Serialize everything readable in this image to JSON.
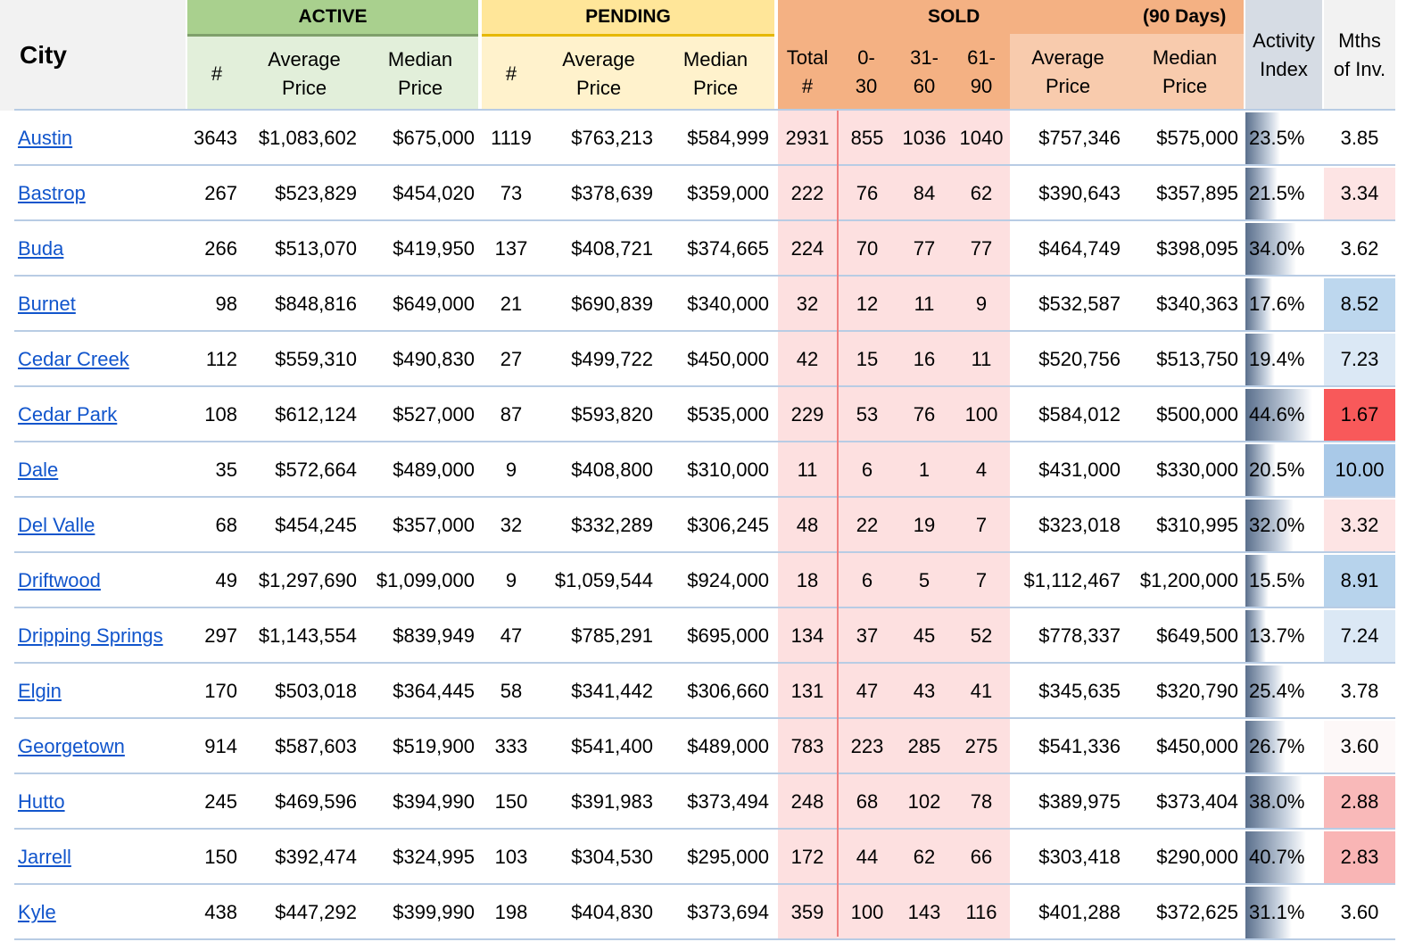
{
  "header": {
    "city": "City",
    "active": "ACTIVE",
    "pending": "PENDING",
    "sold": "SOLD",
    "sold_period": "(90 Days)",
    "num": "#",
    "average_price": [
      "Average",
      "Price"
    ],
    "median_price": [
      "Median",
      "Price"
    ],
    "total": [
      "Total",
      "#"
    ],
    "d0_30": [
      "0-",
      "30"
    ],
    "d31_60": [
      "31-",
      "60"
    ],
    "d61_90": [
      "61-",
      "90"
    ],
    "activity_index": [
      "Activity",
      "Index"
    ],
    "mths_inv": [
      "Mths",
      "of Inv."
    ]
  },
  "colors": {
    "active_top": "#a9d08e",
    "active_sub": "#e2efda",
    "pending_top": "#ffe699",
    "pending_sub": "#fff2cc",
    "sold_top": "#f4b183",
    "sold_sub": "#f8cbad",
    "sold_band": "#fde0e0",
    "grey_header": "#d6dce4",
    "link": "#1155cc"
  },
  "rows": [
    {
      "city": "Austin",
      "a_n": "3643",
      "a_avg": "$1,083,602",
      "a_med": "$675,000",
      "p_n": "1119",
      "p_avg": "$763,213",
      "p_med": "$584,999",
      "s_tot": "2931",
      "s_0": "855",
      "s_31": "1036",
      "s_61": "1040",
      "s_avg": "$757,346",
      "s_med": "$575,000",
      "act": "23.5%",
      "act_value": 23.5,
      "mths": "3.85",
      "mths_color": "#ffffff"
    },
    {
      "city": "Bastrop",
      "a_n": "267",
      "a_avg": "$523,829",
      "a_med": "$454,020",
      "p_n": "73",
      "p_avg": "$378,639",
      "p_med": "$359,000",
      "s_tot": "222",
      "s_0": "76",
      "s_31": "84",
      "s_61": "62",
      "s_avg": "$390,643",
      "s_med": "$357,895",
      "act": "21.5%",
      "act_value": 21.5,
      "mths": "3.34",
      "mths_color": "#fde4e4"
    },
    {
      "city": "Buda",
      "a_n": "266",
      "a_avg": "$513,070",
      "a_med": "$419,950",
      "p_n": "137",
      "p_avg": "$408,721",
      "p_med": "$374,665",
      "s_tot": "224",
      "s_0": "70",
      "s_31": "77",
      "s_61": "77",
      "s_avg": "$464,749",
      "s_med": "$398,095",
      "act": "34.0%",
      "act_value": 34.0,
      "mths": "3.62",
      "mths_color": "#ffffff"
    },
    {
      "city": "Burnet",
      "a_n": "98",
      "a_avg": "$848,816",
      "a_med": "$649,000",
      "p_n": "21",
      "p_avg": "$690,839",
      "p_med": "$340,000",
      "s_tot": "32",
      "s_0": "12",
      "s_31": "11",
      "s_61": "9",
      "s_avg": "$532,587",
      "s_med": "$340,363",
      "act": "17.6%",
      "act_value": 17.6,
      "mths": "8.52",
      "mths_color": "#bdd7ee"
    },
    {
      "city": "Cedar Creek",
      "a_n": "112",
      "a_avg": "$559,310",
      "a_med": "$490,830",
      "p_n": "27",
      "p_avg": "$499,722",
      "p_med": "$450,000",
      "s_tot": "42",
      "s_0": "15",
      "s_31": "16",
      "s_61": "11",
      "s_avg": "$520,756",
      "s_med": "$513,750",
      "act": "19.4%",
      "act_value": 19.4,
      "mths": "7.23",
      "mths_color": "#dbe8f5"
    },
    {
      "city": "Cedar Park",
      "a_n": "108",
      "a_avg": "$612,124",
      "a_med": "$527,000",
      "p_n": "87",
      "p_avg": "$593,820",
      "p_med": "$535,000",
      "s_tot": "229",
      "s_0": "53",
      "s_31": "76",
      "s_61": "100",
      "s_avg": "$584,012",
      "s_med": "$500,000",
      "act": "44.6%",
      "act_value": 44.6,
      "mths": "1.67",
      "mths_color": "#f8595a"
    },
    {
      "city": "Dale",
      "a_n": "35",
      "a_avg": "$572,664",
      "a_med": "$489,000",
      "p_n": "9",
      "p_avg": "$408,800",
      "p_med": "$310,000",
      "s_tot": "11",
      "s_0": "6",
      "s_31": "1",
      "s_61": "4",
      "s_avg": "$431,000",
      "s_med": "$330,000",
      "act": "20.5%",
      "act_value": 20.5,
      "mths": "10.00",
      "mths_color": "#a9c9e8"
    },
    {
      "city": "Del Valle",
      "a_n": "68",
      "a_avg": "$454,245",
      "a_med": "$357,000",
      "p_n": "32",
      "p_avg": "$332,289",
      "p_med": "$306,245",
      "s_tot": "48",
      "s_0": "22",
      "s_31": "19",
      "s_61": "7",
      "s_avg": "$323,018",
      "s_med": "$310,995",
      "act": "32.0%",
      "act_value": 32.0,
      "mths": "3.32",
      "mths_color": "#fde4e4"
    },
    {
      "city": "Driftwood",
      "a_n": "49",
      "a_avg": "$1,297,690",
      "a_med": "$1,099,000",
      "p_n": "9",
      "p_avg": "$1,059,544",
      "p_med": "$924,000",
      "s_tot": "18",
      "s_0": "6",
      "s_31": "5",
      "s_61": "7",
      "s_avg": "$1,112,467",
      "s_med": "$1,200,000",
      "act": "15.5%",
      "act_value": 15.5,
      "mths": "8.91",
      "mths_color": "#b7d3ec"
    },
    {
      "city": "Dripping Springs",
      "a_n": "297",
      "a_avg": "$1,143,554",
      "a_med": "$839,949",
      "p_n": "47",
      "p_avg": "$785,291",
      "p_med": "$695,000",
      "s_tot": "134",
      "s_0": "37",
      "s_31": "45",
      "s_61": "52",
      "s_avg": "$778,337",
      "s_med": "$649,500",
      "act": "13.7%",
      "act_value": 13.7,
      "mths": "7.24",
      "mths_color": "#dbe8f5"
    },
    {
      "city": "Elgin",
      "a_n": "170",
      "a_avg": "$503,018",
      "a_med": "$364,445",
      "p_n": "58",
      "p_avg": "$341,442",
      "p_med": "$306,660",
      "s_tot": "131",
      "s_0": "47",
      "s_31": "43",
      "s_61": "41",
      "s_avg": "$345,635",
      "s_med": "$320,790",
      "act": "25.4%",
      "act_value": 25.4,
      "mths": "3.78",
      "mths_color": "#ffffff"
    },
    {
      "city": "Georgetown",
      "a_n": "914",
      "a_avg": "$587,603",
      "a_med": "$519,900",
      "p_n": "333",
      "p_avg": "$541,400",
      "p_med": "$489,000",
      "s_tot": "783",
      "s_0": "223",
      "s_31": "285",
      "s_61": "275",
      "s_avg": "$541,336",
      "s_med": "$450,000",
      "act": "26.7%",
      "act_value": 26.7,
      "mths": "3.60",
      "mths_color": "#fdf8f8"
    },
    {
      "city": "Hutto",
      "a_n": "245",
      "a_avg": "$469,596",
      "a_med": "$394,990",
      "p_n": "150",
      "p_avg": "$391,983",
      "p_med": "$373,494",
      "s_tot": "248",
      "s_0": "68",
      "s_31": "102",
      "s_61": "78",
      "s_avg": "$389,975",
      "s_med": "$373,404",
      "act": "38.0%",
      "act_value": 38.0,
      "mths": "2.88",
      "mths_color": "#f9b9b9"
    },
    {
      "city": "Jarrell",
      "a_n": "150",
      "a_avg": "$392,474",
      "a_med": "$324,995",
      "p_n": "103",
      "p_avg": "$304,530",
      "p_med": "$295,000",
      "s_tot": "172",
      "s_0": "44",
      "s_31": "62",
      "s_61": "66",
      "s_avg": "$303,418",
      "s_med": "$290,000",
      "act": "40.7%",
      "act_value": 40.7,
      "mths": "2.83",
      "mths_color": "#f9b5b5"
    },
    {
      "city": "Kyle",
      "a_n": "438",
      "a_avg": "$447,292",
      "a_med": "$399,990",
      "p_n": "198",
      "p_avg": "$404,830",
      "p_med": "$373,694",
      "s_tot": "359",
      "s_0": "100",
      "s_31": "143",
      "s_61": "116",
      "s_avg": "$401,288",
      "s_med": "$372,625",
      "act": "31.1%",
      "act_value": 31.1,
      "mths": "3.60",
      "mths_color": "#ffffff"
    }
  ]
}
